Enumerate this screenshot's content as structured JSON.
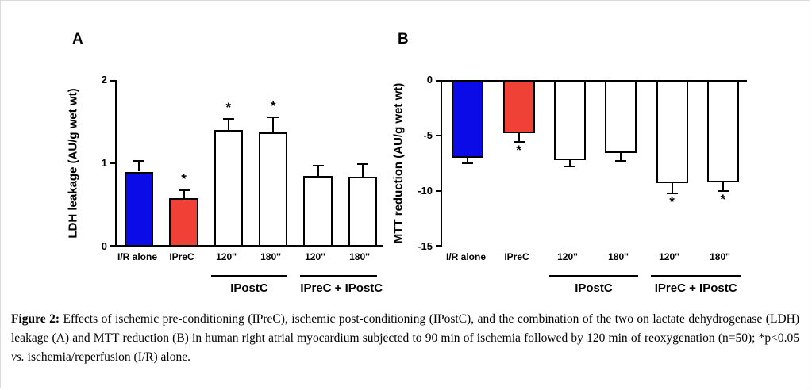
{
  "caption": {
    "label": "Figure 2:",
    "body1": " Effects of ischemic pre-conditioning (IPreC), ischemic post-conditioning (IPostC), and the combination of the two on lactate dehydrogenase (LDH) leakage (A) and MTT reduction (B) in human right atrial myocardium subjected to 90 min of ischemia followed by 120 min of reoxygenation (n=50); *p<0.05 ",
    "italic": "vs.",
    "body2": " ischemia/reperfusion (I/R) alone."
  },
  "colors": {
    "blue_bar": "#0B0BE8",
    "red_bar": "#EF4135",
    "white_bar": "#FFFFFF",
    "axis": "#000000"
  },
  "chart_data": [
    {
      "panel": "A",
      "type": "bar",
      "title": "",
      "ylabel": "LDH leakage (AU/g wet wt)",
      "xlabel": "",
      "ylim": [
        0,
        2
      ],
      "yticks": [
        2,
        1,
        0
      ],
      "grid": false,
      "legend": "none",
      "categories": [
        "I/R alone",
        "IPreC",
        "120''",
        "180''",
        "120''",
        "180''"
      ],
      "values": [
        0.9,
        0.58,
        1.4,
        1.37,
        0.85,
        0.84
      ],
      "errors": [
        0.13,
        0.1,
        0.13,
        0.18,
        0.12,
        0.15
      ],
      "significant": [
        false,
        true,
        true,
        true,
        false,
        false
      ],
      "significance_marker": "*",
      "bar_colors": [
        "#0B0BE8",
        "#EF4135",
        "#FFFFFF",
        "#FFFFFF",
        "#FFFFFF",
        "#FFFFFF"
      ],
      "groups": [
        {
          "label": "IPostC",
          "start": 2,
          "end": 3
        },
        {
          "label": "IPreC + IPostC",
          "start": 4,
          "end": 5
        }
      ]
    },
    {
      "panel": "B",
      "type": "bar",
      "title": "",
      "ylabel": "MTT reduction (AU/g wet wt)",
      "xlabel": "",
      "ylim": [
        -15,
        0
      ],
      "yticks": [
        0,
        -5,
        -10,
        -15
      ],
      "grid": false,
      "legend": "none",
      "categories": [
        "I/R alone",
        "IPreC",
        "120''",
        "180''",
        "120''",
        "180''"
      ],
      "values": [
        -7.0,
        -4.8,
        -7.2,
        -6.6,
        -9.3,
        -9.2
      ],
      "errors": [
        0.5,
        0.8,
        0.6,
        0.7,
        0.9,
        0.8
      ],
      "significant": [
        false,
        true,
        false,
        false,
        true,
        true
      ],
      "significance_marker": "*",
      "bar_colors": [
        "#0B0BE8",
        "#EF4135",
        "#FFFFFF",
        "#FFFFFF",
        "#FFFFFF",
        "#FFFFFF"
      ],
      "groups": [
        {
          "label": "IPostC",
          "start": 2,
          "end": 3
        },
        {
          "label": "IPreC + IPostC",
          "start": 4,
          "end": 5
        }
      ]
    }
  ]
}
